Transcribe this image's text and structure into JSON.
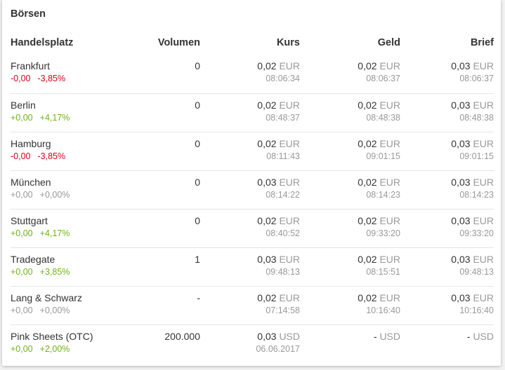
{
  "title": "Börsen",
  "headers": [
    "Handelsplatz",
    "Volumen",
    "Kurs",
    "Geld",
    "Brief"
  ],
  "colors": {
    "negative": "#d0021b",
    "positive": "#6fb21b",
    "neutral": "#999999"
  },
  "rows": [
    {
      "name": "Frankfurt",
      "abs": "-0,00",
      "pct": "-3,85%",
      "trend": "neg",
      "volume": "0",
      "kurs": "0,02",
      "kurs_cur": "EUR",
      "kurs_time": "08:06:34",
      "geld": "0,02",
      "geld_cur": "EUR",
      "geld_time": "08:06:37",
      "brief": "0,03",
      "brief_cur": "EUR",
      "brief_time": "08:06:37"
    },
    {
      "name": "Berlin",
      "abs": "+0,00",
      "pct": "+4,17%",
      "trend": "pos",
      "volume": "0",
      "kurs": "0,02",
      "kurs_cur": "EUR",
      "kurs_time": "08:48:37",
      "geld": "0,02",
      "geld_cur": "EUR",
      "geld_time": "08:48:38",
      "brief": "0,03",
      "brief_cur": "EUR",
      "brief_time": "08:48:38"
    },
    {
      "name": "Hamburg",
      "abs": "-0,00",
      "pct": "-3,85%",
      "trend": "neg",
      "volume": "0",
      "kurs": "0,02",
      "kurs_cur": "EUR",
      "kurs_time": "08:11:43",
      "geld": "0,02",
      "geld_cur": "EUR",
      "geld_time": "09:01:15",
      "brief": "0,03",
      "brief_cur": "EUR",
      "brief_time": "09:01:15"
    },
    {
      "name": "München",
      "abs": "+0,00",
      "pct": "+0,00%",
      "trend": "neu",
      "volume": "0",
      "kurs": "0,03",
      "kurs_cur": "EUR",
      "kurs_time": "08:14:22",
      "geld": "0,02",
      "geld_cur": "EUR",
      "geld_time": "08:14:23",
      "brief": "0,03",
      "brief_cur": "EUR",
      "brief_time": "08:14:23"
    },
    {
      "name": "Stuttgart",
      "abs": "+0,00",
      "pct": "+4,17%",
      "trend": "pos",
      "volume": "0",
      "kurs": "0,02",
      "kurs_cur": "EUR",
      "kurs_time": "08:40:52",
      "geld": "0,02",
      "geld_cur": "EUR",
      "geld_time": "09:33:20",
      "brief": "0,03",
      "brief_cur": "EUR",
      "brief_time": "09:33:20"
    },
    {
      "name": "Tradegate",
      "abs": "+0,00",
      "pct": "+3,85%",
      "trend": "pos",
      "volume": "1",
      "kurs": "0,03",
      "kurs_cur": "EUR",
      "kurs_time": "09:48:13",
      "geld": "0,02",
      "geld_cur": "EUR",
      "geld_time": "08:15:51",
      "brief": "0,03",
      "brief_cur": "EUR",
      "brief_time": "09:48:13"
    },
    {
      "name": "Lang & Schwarz",
      "abs": "+0,00",
      "pct": "+0,00%",
      "trend": "neu",
      "volume": "-",
      "kurs": "0,02",
      "kurs_cur": "EUR",
      "kurs_time": "07:14:58",
      "geld": "0,02",
      "geld_cur": "EUR",
      "geld_time": "10:16:40",
      "brief": "0,03",
      "brief_cur": "EUR",
      "brief_time": "10:16:40"
    },
    {
      "name": "Pink Sheets (OTC)",
      "abs": "+0,00",
      "pct": "+2,00%",
      "trend": "pos",
      "volume": "200.000",
      "kurs": "0,03",
      "kurs_cur": "USD",
      "kurs_time": "06.06.2017",
      "geld": "-",
      "geld_cur": "USD",
      "geld_time": "",
      "brief": "-",
      "brief_cur": "USD",
      "brief_time": ""
    }
  ]
}
